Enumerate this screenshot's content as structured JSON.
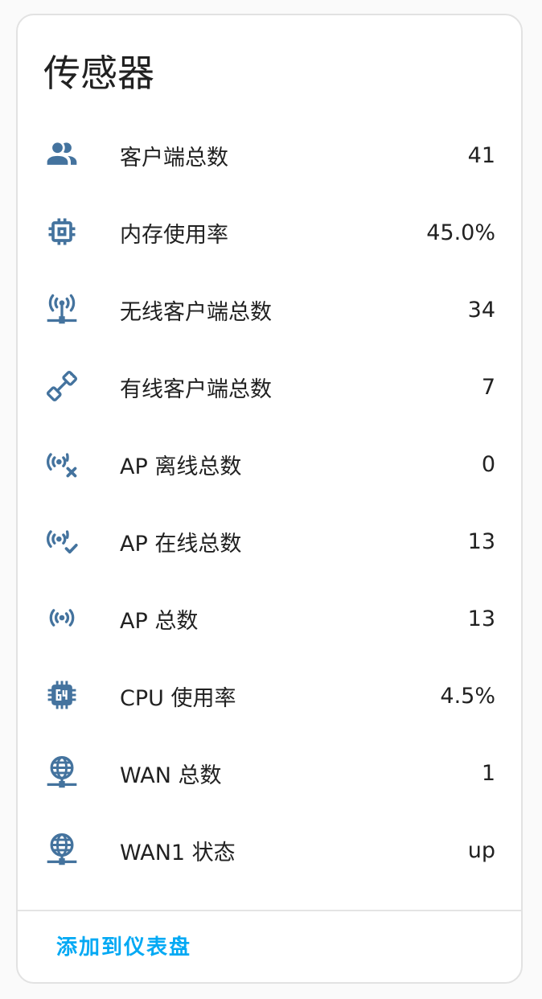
{
  "card": {
    "title": "传感器",
    "action_label": "添加到仪表盘"
  },
  "colors": {
    "icon": "#44739e",
    "accent": "#03a9f4",
    "text": "#212121"
  },
  "sensors": [
    {
      "icon": "account-multiple-icon",
      "label": "客户端总数",
      "value": "41"
    },
    {
      "icon": "memory-chip-icon",
      "label": "内存使用率",
      "value": "45.0%"
    },
    {
      "icon": "wifi-access-point-network-icon",
      "label": "无线客户端总数",
      "value": "34"
    },
    {
      "icon": "cable-ethernet-icon",
      "label": "有线客户端总数",
      "value": "7"
    },
    {
      "icon": "access-point-remove-icon",
      "label": "AP 离线总数",
      "value": "0"
    },
    {
      "icon": "access-point-check-icon",
      "label": "AP 在线总数",
      "value": "13"
    },
    {
      "icon": "access-point-icon",
      "label": "AP 总数",
      "value": "13"
    },
    {
      "icon": "cpu-64-bit-icon",
      "label": "CPU 使用率",
      "value": "4.5%"
    },
    {
      "icon": "web-network-icon",
      "label": "WAN 总数",
      "value": "1"
    },
    {
      "icon": "web-network-icon",
      "label": "WAN1 状态",
      "value": "up"
    }
  ]
}
